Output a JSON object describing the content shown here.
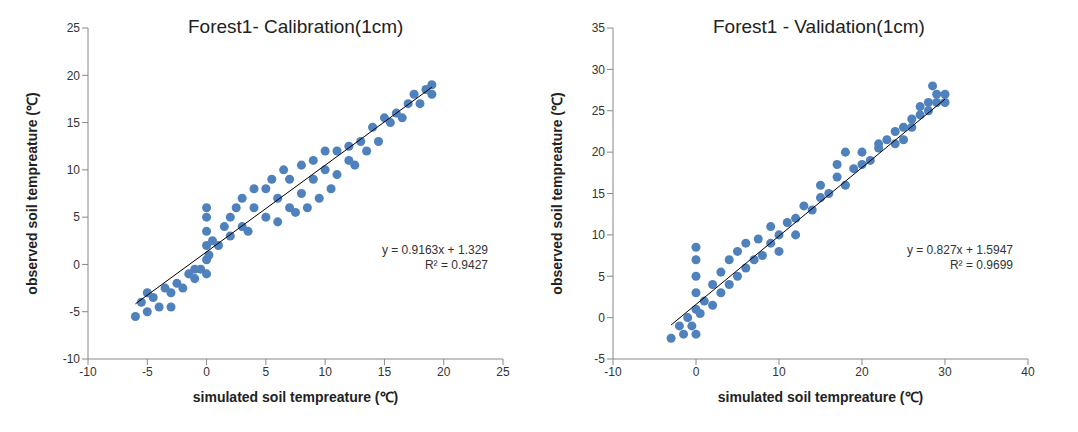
{
  "chart_data": [
    {
      "type": "scatter",
      "title": "Forest1- Calibration(1cm)",
      "x_label": "simulated soil tempreature (℃)",
      "y_label": "observed soil tempreature (℃)",
      "color": "#4f81bd",
      "marker": "circle",
      "xlim": [
        -10,
        25
      ],
      "xticks": [
        -10,
        -5,
        0,
        5,
        10,
        15,
        20,
        25
      ],
      "ylim": [
        -10,
        25
      ],
      "yticks": [
        -10,
        -5,
        0,
        5,
        10,
        15,
        20,
        25
      ],
      "annotations": [
        "y = 0.9163x + 1.329",
        "R² = 0.9427"
      ],
      "trendline": {
        "slope": 0.9163,
        "intercept": 1.329,
        "x": [
          -6,
          19
        ],
        "color": "#000000"
      },
      "x": [
        -6,
        -5.5,
        -5,
        -4.5,
        -4,
        -3.5,
        -3,
        -2.5,
        -2,
        -1.5,
        -1,
        -0.5,
        -5,
        -3,
        -1,
        0,
        0,
        0,
        0,
        0,
        0,
        0.2,
        0.5,
        1,
        1.5,
        2,
        2,
        2.5,
        3,
        3,
        3.5,
        4,
        4,
        5,
        5,
        5.5,
        6,
        6,
        6.5,
        7,
        7,
        7.5,
        8,
        8,
        8.5,
        9,
        9,
        9.5,
        10,
        10,
        10.5,
        11,
        11,
        12,
        12,
        12.5,
        13,
        13.5,
        14,
        14.5,
        15,
        15.5,
        16,
        16.5,
        17,
        17.5,
        18,
        18.5,
        19,
        19
      ],
      "y": [
        -5.5,
        -4,
        -5,
        -3.5,
        -4.5,
        -2.5,
        -3,
        -2,
        -2.5,
        -1,
        -1.5,
        -0.5,
        -3,
        -4.5,
        -0.5,
        -1,
        0.5,
        2,
        3.5,
        5,
        6,
        1,
        2.5,
        2,
        4,
        3,
        5,
        6,
        4,
        7,
        3.5,
        6,
        8,
        5,
        8,
        9,
        4.5,
        7,
        10,
        6,
        9,
        5.5,
        10.5,
        7.5,
        6,
        11,
        9,
        7,
        12,
        10,
        8,
        12,
        9.5,
        11,
        12.5,
        10.5,
        13,
        12,
        14.5,
        13,
        15.5,
        15,
        16,
        15.5,
        17,
        18,
        17,
        18.5,
        19,
        18
      ]
    },
    {
      "type": "scatter",
      "title": "Forest1 - Validation(1cm)",
      "x_label": "simulated soil tempreature (℃)",
      "y_label": "observed soil tempreature (℃)",
      "color": "#4f81bd",
      "marker": "circle",
      "xlim": [
        -10,
        40
      ],
      "xticks": [
        -10,
        0,
        10,
        20,
        30,
        40
      ],
      "ylim": [
        -5,
        35
      ],
      "yticks": [
        -5,
        0,
        5,
        10,
        15,
        20,
        25,
        30,
        35
      ],
      "annotations": [
        "y = 0.827x + 1.5947",
        "R² = 0.9699"
      ],
      "trendline": {
        "slope": 0.827,
        "intercept": 1.5947,
        "x": [
          -3,
          30
        ],
        "color": "#000000"
      },
      "x": [
        -3,
        -2,
        -1.5,
        -1,
        -0.5,
        0,
        0,
        0,
        0,
        0,
        0,
        0.5,
        1,
        2,
        2,
        3,
        3,
        4,
        4,
        5,
        5,
        6,
        6,
        7,
        7.5,
        8,
        9,
        9,
        10,
        10,
        11,
        12,
        12,
        13,
        14,
        15,
        15,
        16,
        17,
        17,
        18,
        18,
        19,
        20,
        20,
        21,
        22,
        22,
        23,
        24,
        24,
        25,
        25,
        26,
        26,
        27,
        27,
        28,
        28,
        29,
        29,
        30,
        30,
        28.5
      ],
      "y": [
        -2.5,
        -1,
        -2,
        0,
        -1,
        -2,
        1,
        3,
        5,
        7,
        8.5,
        0.5,
        2,
        1.5,
        4,
        3,
        5.5,
        4,
        7,
        5,
        8,
        6,
        9,
        7,
        9.5,
        7.5,
        9,
        11,
        10,
        8,
        11.5,
        12,
        10,
        13.5,
        13,
        14.5,
        16,
        15,
        17,
        18.5,
        16,
        20,
        18,
        18.5,
        20,
        19,
        20.5,
        21,
        21.5,
        21,
        22.5,
        23,
        21.5,
        24,
        23,
        24.5,
        25.5,
        25,
        26,
        26,
        27,
        27,
        26,
        28
      ]
    }
  ]
}
